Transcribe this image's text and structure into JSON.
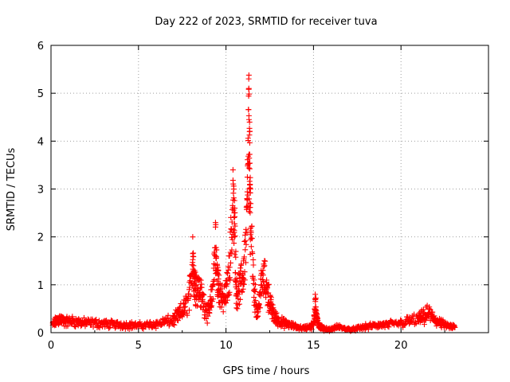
{
  "chart_data": {
    "type": "scatter",
    "title": "Day 222 of 2023, SRMTID for receiver tuva",
    "xlabel": "GPS time / hours",
    "ylabel": "SRMTID / TECUs",
    "xlim": [
      0,
      25
    ],
    "ylim": [
      0,
      6
    ],
    "xticks": [
      0,
      5,
      10,
      15,
      20
    ],
    "yticks": [
      0,
      1,
      2,
      3,
      4,
      5,
      6
    ],
    "grid": true,
    "marker": "+",
    "color": "#ff0000",
    "series": [
      {
        "name": "SRMTID",
        "description": "dense point cloud; approximate envelope transcribed below",
        "x": [
          0.1,
          0.3,
          0.5,
          0.8,
          1.2,
          1.6,
          2.0,
          2.5,
          3.0,
          3.5,
          4.0,
          4.5,
          5.0,
          5.5,
          6.0,
          6.5,
          7.0,
          7.3,
          7.6,
          7.9,
          8.1,
          8.2,
          8.3,
          8.5,
          8.7,
          9.0,
          9.2,
          9.4,
          9.5,
          9.6,
          9.8,
          10.0,
          10.2,
          10.4,
          10.5,
          10.6,
          10.8,
          11.0,
          11.2,
          11.3,
          11.35,
          11.4,
          11.6,
          11.8,
          12.0,
          12.2,
          12.4,
          12.6,
          12.8,
          13.0,
          13.3,
          13.6,
          14.0,
          14.4,
          14.8,
          15.0,
          15.1,
          15.2,
          15.4,
          15.6,
          16.0,
          16.4,
          16.8,
          17.2,
          17.6,
          18.0,
          18.5,
          19.0,
          19.5,
          20.0,
          20.5,
          21.0,
          21.3,
          21.6,
          21.9,
          22.2,
          22.5,
          22.8
        ],
        "y": [
          0.2,
          0.3,
          0.35,
          0.28,
          0.3,
          0.27,
          0.25,
          0.25,
          0.23,
          0.22,
          0.2,
          0.2,
          0.18,
          0.2,
          0.22,
          0.28,
          0.32,
          0.45,
          0.6,
          0.9,
          2.0,
          1.3,
          1.2,
          1.1,
          0.8,
          0.5,
          0.9,
          2.3,
          1.4,
          1.2,
          0.8,
          1.0,
          1.6,
          3.4,
          2.6,
          1.0,
          1.2,
          1.5,
          2.8,
          5.3,
          4.2,
          3.0,
          1.1,
          0.5,
          1.2,
          1.4,
          1.0,
          0.6,
          0.4,
          0.3,
          0.25,
          0.2,
          0.15,
          0.12,
          0.15,
          0.2,
          0.8,
          0.3,
          0.15,
          0.1,
          0.08,
          0.15,
          0.1,
          0.08,
          0.12,
          0.15,
          0.18,
          0.2,
          0.22,
          0.25,
          0.3,
          0.35,
          0.4,
          0.5,
          0.35,
          0.25,
          0.2,
          0.15
        ]
      }
    ]
  }
}
